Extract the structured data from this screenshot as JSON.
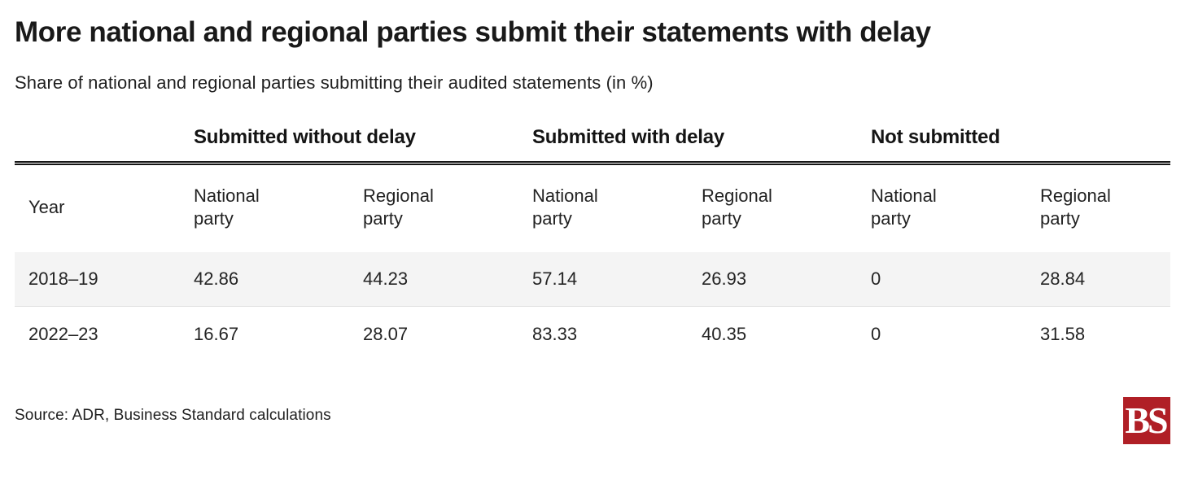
{
  "header": {
    "title": "More national and regional parties submit their statements with delay",
    "subtitle": "Share of national and regional parties submitting their audited statements (in %)"
  },
  "chart_data": {
    "type": "table",
    "title": "More national and regional parties submit their statements with delay",
    "subtitle": "Share of national and regional parties submitting their audited statements (in %)",
    "unit": "%",
    "group_headers": [
      "Submitted without delay",
      "Submitted with delay",
      "Not submitted"
    ],
    "columns": [
      "Year",
      "National\nparty",
      "Regional\nparty",
      "National\nparty",
      "Regional\nparty",
      "National\nparty",
      "Regional\nparty"
    ],
    "rows": [
      {
        "year": "2018–19",
        "values": [
          "42.86",
          "44.23",
          "57.14",
          "26.93",
          "0",
          "28.84"
        ]
      },
      {
        "year": "2022–23",
        "values": [
          "16.67",
          "28.07",
          "83.33",
          "40.35",
          "0",
          "31.58"
        ]
      }
    ],
    "layout_hints": {
      "shaded_row_background": "#f4f4f4",
      "header_rule_color": "#161616",
      "grid": "off"
    }
  },
  "footer": {
    "source": "Source: ADR, Business Standard calculations",
    "logo_text": "BS",
    "logo_color": "#b01f26"
  }
}
